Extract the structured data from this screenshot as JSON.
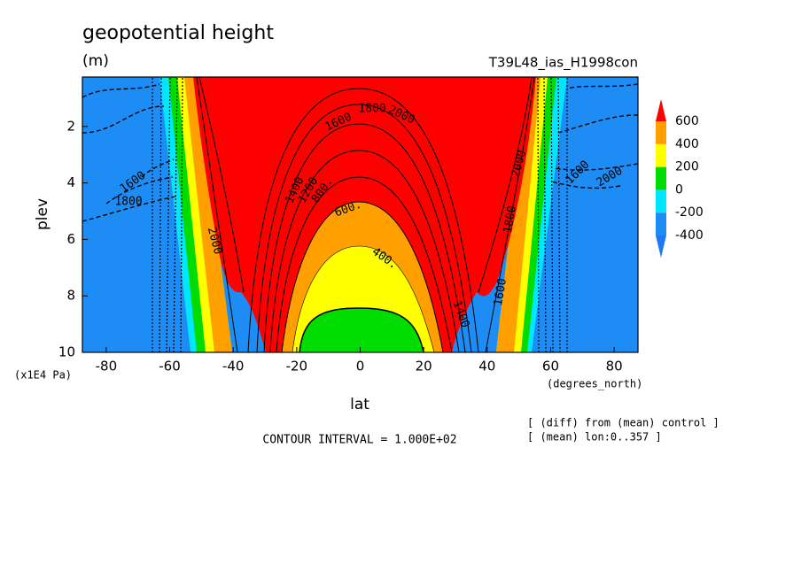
{
  "chart_data": {
    "type": "contour",
    "title": "geopotential height",
    "subtitle": "(m)",
    "run_label": "T39L48_ias_H1998con",
    "x_label": "lat",
    "x_units": "(degrees_north)",
    "y_label": "plev",
    "y_units": "(x1E4 Pa)",
    "xlim": [
      -87.5,
      87.5
    ],
    "xticks": [
      -80,
      -60,
      -40,
      -20,
      0,
      20,
      40,
      60,
      80
    ],
    "ylim": [
      0.25,
      10
    ],
    "y_inverted": true,
    "yticks": [
      2,
      4,
      6,
      8,
      10
    ],
    "contour_interval": "CONTOUR INTERVAL = 1.000E+02",
    "notes": [
      "[ (diff) from (mean) control ]",
      "[ (mean) lon:0..357 ]"
    ],
    "colorbar": {
      "levels": [
        -400,
        -200,
        0,
        200,
        400,
        600
      ],
      "colors": [
        "#1e78f0",
        "#1e8cf5",
        "#00e6ff",
        "#00dc00",
        "#ffff00",
        "#ffa000",
        "#ff0000"
      ]
    },
    "contour_labels": [
      "1600",
      "1800",
      "2000",
      "1400",
      "1200",
      "800.",
      "600.",
      "400.",
      "1600",
      "1800",
      "2000",
      "2000",
      "1600",
      "1400",
      "1600",
      "1800",
      "2000"
    ]
  }
}
